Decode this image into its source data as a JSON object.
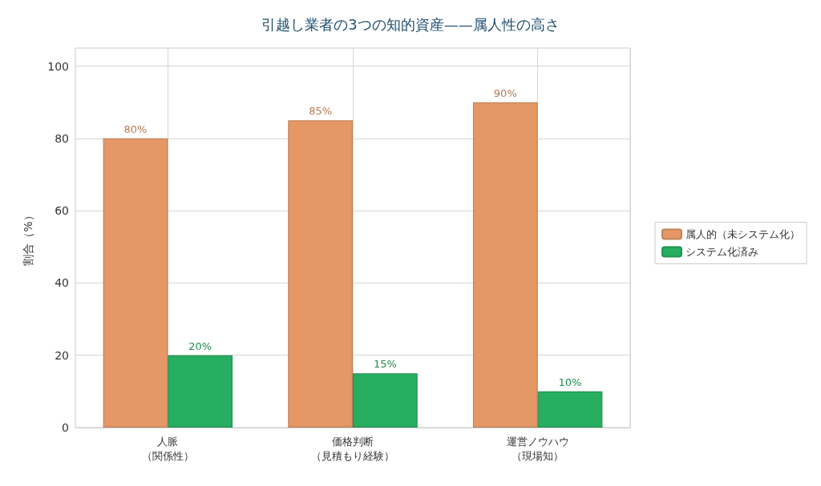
{
  "chart_data": {
    "type": "bar",
    "title": "引越し業者の3つの知的資産——属人性の高さ",
    "ylabel": "割合（%）",
    "categories": [
      "人脈（関係性）",
      "価格判断（見積もり経験）",
      "運営ノウハウ（現場知）"
    ],
    "series": [
      {
        "name": "属人的（未システム化）",
        "color": "#e59866",
        "values": [
          80,
          85,
          90
        ],
        "value_labels": [
          "80%",
          "85%",
          "90%"
        ]
      },
      {
        "name": "システム化済み",
        "color": "#27ae60",
        "values": [
          20,
          15,
          10
        ],
        "value_labels": [
          "20%",
          "15%",
          "10%"
        ]
      }
    ],
    "ylim": [
      0,
      105
    ],
    "yticks": [
      0,
      20,
      40,
      60,
      80,
      100
    ],
    "grid": true,
    "legend": "right"
  }
}
